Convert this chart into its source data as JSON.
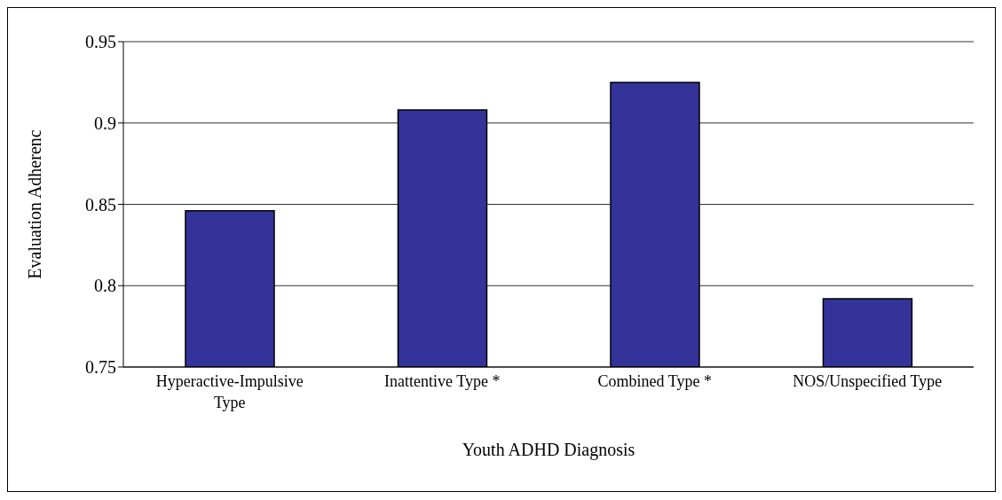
{
  "chart_data": {
    "type": "bar",
    "xlabel": "Youth ADHD Diagnosis",
    "ylabel": "Evaluation Adherenc",
    "categories": [
      "Hyperactive-Impulsive Type",
      "Inattentive Type *",
      "Combined Type *",
      "NOS/Unspecified Type"
    ],
    "values": [
      0.846,
      0.908,
      0.925,
      0.792
    ],
    "color": "#333399",
    "ylim": [
      0.75,
      0.95
    ],
    "yticks": [
      0.75,
      0.8,
      0.85,
      0.9,
      0.95
    ],
    "grid": "y"
  }
}
